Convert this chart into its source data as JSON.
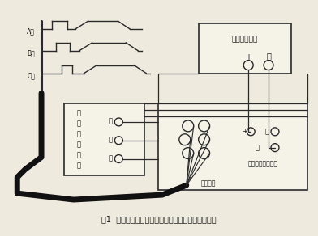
{
  "title": "图1  合分闸时间、同期性及合闸弹跳时间试验接线图",
  "bg_color": "#eeeade",
  "line_color": "#2a2a2a",
  "box_color": "#2a2a2a",
  "text_color": "#1a1a1a",
  "dcbox_label": "可调直流电源",
  "control_box_label_lines": [
    "断",
    "路",
    "器",
    "控",
    "制",
    "箱"
  ],
  "tester_label": "断路器特性测试仪",
  "time_channel_label": "时间通道",
  "ctrl_labels": [
    "合",
    "分",
    "－"
  ],
  "tester_right_labels": [
    "+",
    "合",
    "分"
  ]
}
